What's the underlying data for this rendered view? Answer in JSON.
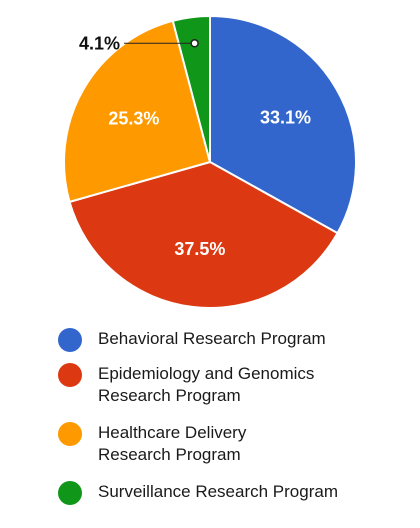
{
  "chart_data": {
    "type": "pie",
    "categories": [
      "Behavioral Research Program",
      "Epidemiology and Genomics Research Program",
      "Healthcare Delivery Research Program",
      "Surveillance Research Program"
    ],
    "values": [
      33.1,
      37.5,
      25.3,
      4.1
    ],
    "value_labels": [
      "33.1%",
      "37.5%",
      "25.3%",
      "4.1%"
    ],
    "colors": [
      "#3366cc",
      "#dc3912",
      "#ff9900",
      "#109618"
    ],
    "legend_position": "bottom",
    "legend": [
      {
        "label": "Behavioral Research Program",
        "color": "#3366cc"
      },
      {
        "label": "Epidemiology and Genomics\nResearch Program",
        "color": "#dc3912"
      },
      {
        "label": "Healthcare Delivery\nResearch Program",
        "color": "#ff9900"
      },
      {
        "label": "Surveillance Research Program",
        "color": "#109618"
      }
    ]
  }
}
